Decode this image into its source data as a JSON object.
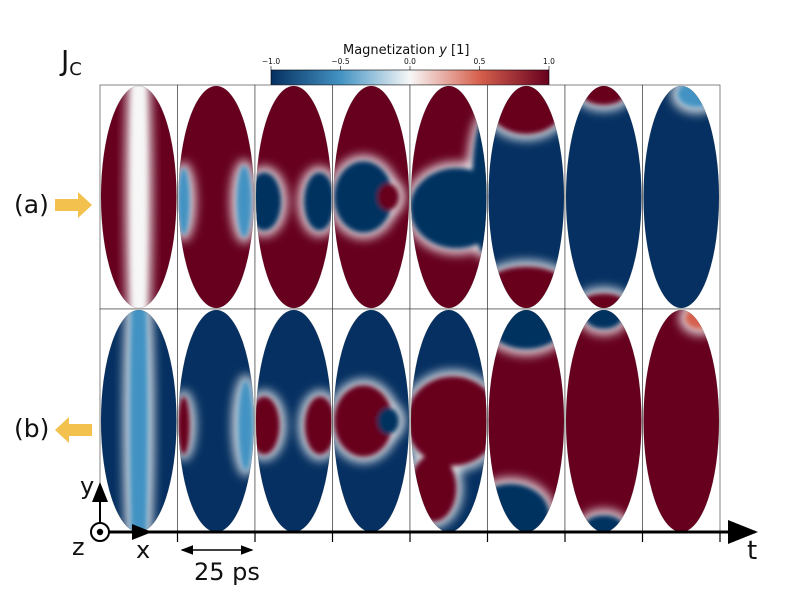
{
  "figure": {
    "current_label": "J",
    "current_subscript": "C",
    "colorbar": {
      "title_prefix": "Magnetization ",
      "title_var": "y",
      "title_suffix": " [1]",
      "ticks": [
        "−1.0",
        "−0.5",
        "0.0",
        "0.5",
        "1.0"
      ],
      "colors": {
        "negative": "#053061",
        "mid_negative": "#4393c3",
        "zero": "#f7f7f7",
        "mid_positive": "#d6604d",
        "positive": "#67001f"
      }
    },
    "rows": [
      {
        "label": "(a)",
        "arrow_direction": "right",
        "arrow_color": "#f2c14e"
      },
      {
        "label": "(b)",
        "arrow_direction": "left",
        "arrow_color": "#f2c14e"
      }
    ],
    "frames_per_row": 8,
    "axes": {
      "x": "x",
      "y": "y",
      "z": "z",
      "t": "t"
    },
    "time_step_label": "25 ps"
  }
}
